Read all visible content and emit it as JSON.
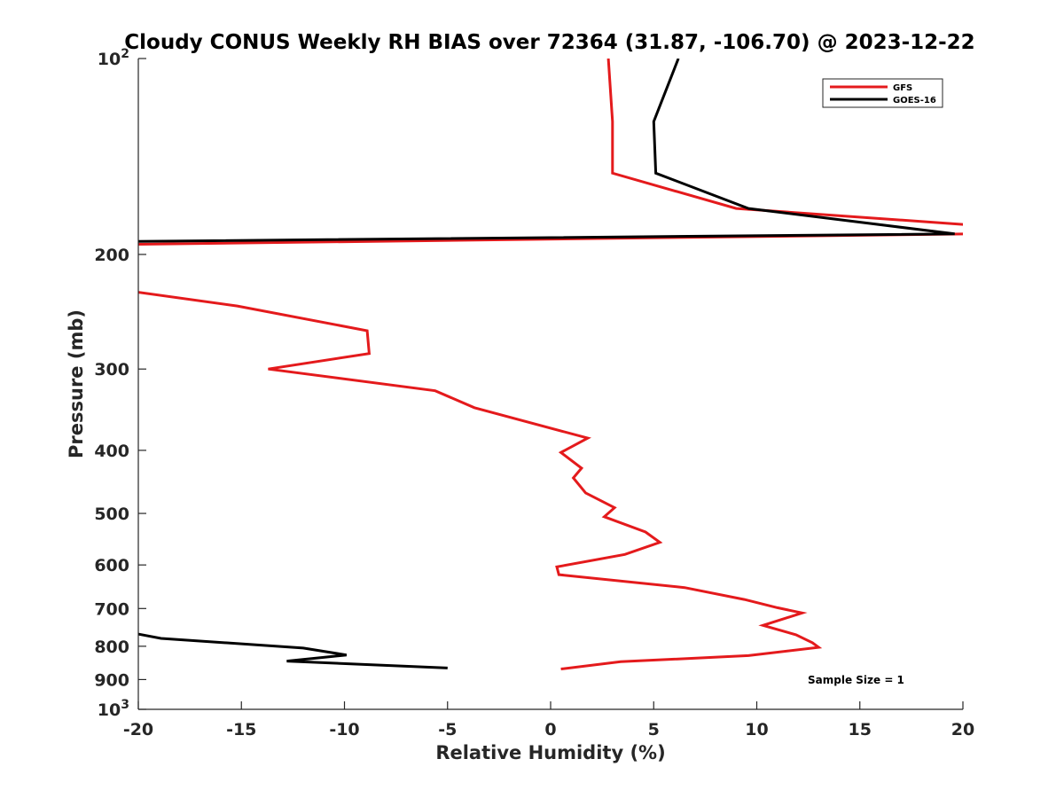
{
  "chart_data": {
    "type": "line",
    "title": "Cloudy CONUS Weekly RH BIAS over 72364 (31.87, -106.70) @ 2023-12-22",
    "xlabel": "Relative Humidity (%)",
    "ylabel": "Pressure (mb)",
    "xlim": [
      -20,
      20
    ],
    "ylim": [
      100,
      1000
    ],
    "y_scale": "log",
    "y_reversed": true,
    "grid": false,
    "legend_position": "top-right",
    "x_ticks": [
      -20,
      -15,
      -10,
      -5,
      0,
      5,
      10,
      15,
      20
    ],
    "x_tick_labels": [
      "-20",
      "-15",
      "-10",
      "-5",
      "0",
      "5",
      "10",
      "15",
      "20"
    ],
    "y_ticks": [
      100,
      200,
      300,
      400,
      500,
      600,
      700,
      800,
      900,
      1000
    ],
    "y_tick_labels": [
      {
        "base": "10",
        "exp": "2"
      },
      {
        "base": "200",
        "exp": ""
      },
      {
        "base": "300",
        "exp": ""
      },
      {
        "base": "400",
        "exp": ""
      },
      {
        "base": "500",
        "exp": ""
      },
      {
        "base": "600",
        "exp": ""
      },
      {
        "base": "700",
        "exp": ""
      },
      {
        "base": "800",
        "exp": ""
      },
      {
        "base": "900",
        "exp": ""
      },
      {
        "base": "10",
        "exp": "3"
      }
    ],
    "annotation": "Sample Size = 1",
    "series": [
      {
        "name": "GFS",
        "color": "#e41a1c",
        "points": [
          {
            "x": 2.8,
            "y": 100
          },
          {
            "x": 3.0,
            "y": 125
          },
          {
            "x": 3.0,
            "y": 150
          },
          {
            "x": 9.0,
            "y": 170
          },
          {
            "x": 20.2,
            "y": 180
          },
          {
            "x": 20.2,
            "y": 186
          },
          {
            "x": -20.3,
            "y": 193
          },
          {
            "x": -20.3,
            "y": 228
          },
          {
            "x": -15.2,
            "y": 240
          },
          {
            "x": -8.9,
            "y": 262
          },
          {
            "x": -8.8,
            "y": 284
          },
          {
            "x": -13.7,
            "y": 300
          },
          {
            "x": -5.6,
            "y": 324
          },
          {
            "x": -3.7,
            "y": 344
          },
          {
            "x": 1.8,
            "y": 383
          },
          {
            "x": 0.5,
            "y": 403
          },
          {
            "x": 1.5,
            "y": 426
          },
          {
            "x": 1.1,
            "y": 441
          },
          {
            "x": 1.7,
            "y": 465
          },
          {
            "x": 3.1,
            "y": 490
          },
          {
            "x": 2.6,
            "y": 506
          },
          {
            "x": 4.6,
            "y": 534
          },
          {
            "x": 5.3,
            "y": 554
          },
          {
            "x": 3.6,
            "y": 578
          },
          {
            "x": 0.3,
            "y": 604
          },
          {
            "x": 0.4,
            "y": 621
          },
          {
            "x": 6.5,
            "y": 650
          },
          {
            "x": 9.4,
            "y": 678
          },
          {
            "x": 11.0,
            "y": 698
          },
          {
            "x": 12.2,
            "y": 711
          },
          {
            "x": 10.3,
            "y": 743
          },
          {
            "x": 11.9,
            "y": 768
          },
          {
            "x": 12.7,
            "y": 790
          },
          {
            "x": 13.0,
            "y": 803
          },
          {
            "x": 9.6,
            "y": 827
          },
          {
            "x": 3.4,
            "y": 845
          },
          {
            "x": 0.5,
            "y": 867
          }
        ]
      },
      {
        "name": "GOES-16",
        "color": "#000000",
        "points": [
          {
            "x": 6.2,
            "y": 100
          },
          {
            "x": 5.0,
            "y": 125
          },
          {
            "x": 5.1,
            "y": 150
          },
          {
            "x": 9.6,
            "y": 170
          },
          {
            "x": 19.6,
            "y": 186
          },
          {
            "x": -20.3,
            "y": 191
          },
          {
            "x": -20.3,
            "y": 763
          },
          {
            "x": -18.9,
            "y": 778
          },
          {
            "x": -12.0,
            "y": 805
          },
          {
            "x": -9.9,
            "y": 825
          },
          {
            "x": -12.8,
            "y": 843
          },
          {
            "x": -5.0,
            "y": 864
          }
        ]
      }
    ]
  }
}
